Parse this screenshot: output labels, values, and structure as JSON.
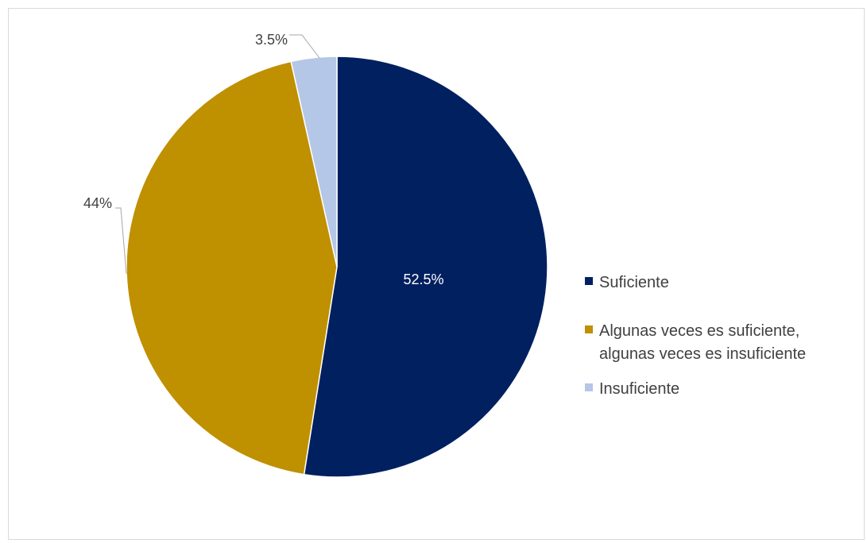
{
  "chart_data": {
    "type": "pie",
    "slices": [
      {
        "name": "Suficiente",
        "value": 52.5,
        "label": "52.5%",
        "color": "#002060"
      },
      {
        "name": "Algunas veces es suficiente, algunas veces es insuficiente",
        "legend_lines": [
          "Algunas veces es suficiente,",
          "algunas veces es insuficiente"
        ],
        "value": 44,
        "label": "44%",
        "color": "#BF9000"
      },
      {
        "name": "Insuficiente",
        "value": 3.5,
        "label": "3.5%",
        "color": "#B4C7E7"
      }
    ],
    "start_angle": "12 o'clock",
    "direction": "clockwise",
    "legend_position": "right"
  }
}
